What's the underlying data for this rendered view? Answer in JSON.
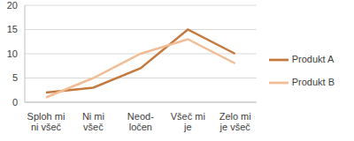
{
  "chart_data": {
    "type": "line",
    "categories": [
      "Sploh mi ni všeč",
      "Ni mi všeč",
      "Neod-ločen",
      "Všeč mi je",
      "Zelo mi je všeč"
    ],
    "series": [
      {
        "name": "Produkt A",
        "color": "#c4793e",
        "values": [
          2,
          3,
          7,
          15,
          10
        ]
      },
      {
        "name": "Produkt B",
        "color": "#f2bc94",
        "values": [
          1,
          5,
          10,
          13,
          8
        ]
      }
    ],
    "ylim": [
      0,
      20
    ],
    "yticks": [
      0,
      5,
      10,
      15,
      20
    ],
    "grid": true,
    "legend": "right"
  }
}
